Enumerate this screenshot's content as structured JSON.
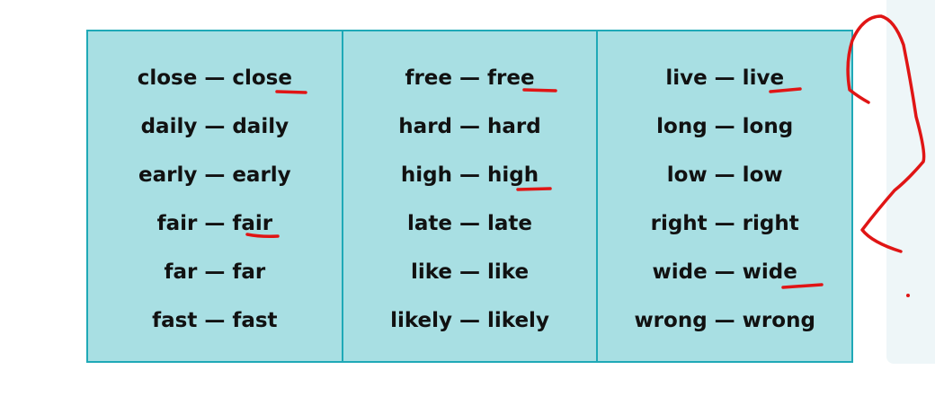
{
  "columns": [
    {
      "rows": [
        "close — close",
        "daily — daily",
        "early — early",
        "fair — fair",
        "far — far",
        "fast — fast"
      ]
    },
    {
      "rows": [
        "free — free",
        "hard — hard",
        "high — high",
        "late — late",
        "like — like",
        "likely — likely"
      ]
    },
    {
      "rows": [
        "live — live",
        "long — long",
        "low — low",
        "right — right",
        "wide — wide",
        "wrong — wrong"
      ]
    }
  ],
  "annotation": {
    "mark": "?",
    "color": "#e01515"
  },
  "colors": {
    "cell_fill": "#a8dfe3",
    "border": "#1fa9b7"
  }
}
